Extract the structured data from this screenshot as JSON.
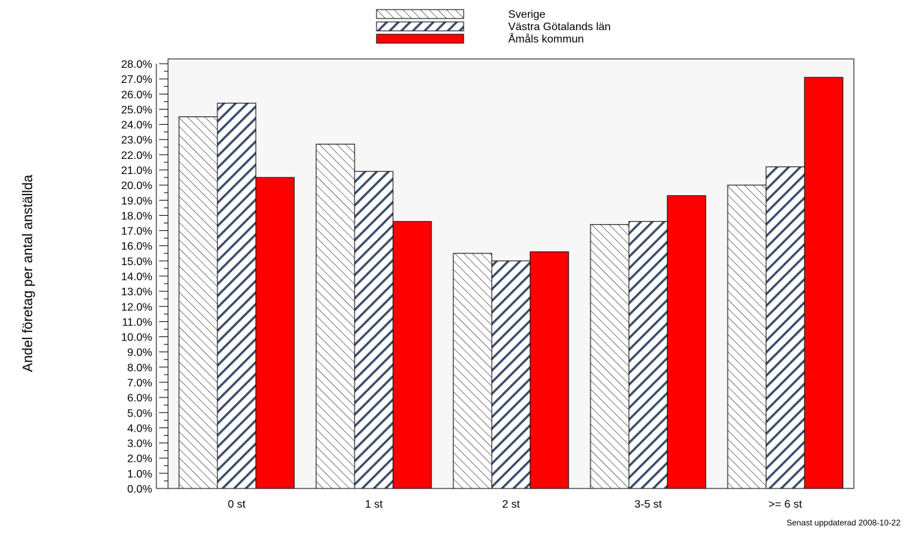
{
  "chart_data": {
    "type": "bar",
    "ylabel": "Andel företag per antal anställda",
    "categories": [
      "0 st",
      "1 st",
      "2 st",
      "3-5 st",
      ">= 6 st"
    ],
    "series": [
      {
        "name": "Sverige",
        "values": [
          24.5,
          22.7,
          15.5,
          17.4,
          20.0
        ],
        "fill": "hatch-back",
        "color": "#000000"
      },
      {
        "name": "Västra Götalands län",
        "values": [
          25.4,
          20.9,
          15.0,
          17.6,
          21.2
        ],
        "fill": "hatch-forward",
        "color": "#3b4c6a"
      },
      {
        "name": "Åmåls kommun",
        "values": [
          20.5,
          17.6,
          15.6,
          19.3,
          27.1
        ],
        "fill": "solid",
        "color": "#ff0000"
      }
    ],
    "ylim": [
      0,
      28
    ],
    "ytick_step": 1,
    "ytick_format": "percent-1dp",
    "grid": false,
    "legend_position": "top-center",
    "plot_background": "#f7f7f7"
  },
  "footer_note": "Senast uppdaterad 2008-10-22"
}
